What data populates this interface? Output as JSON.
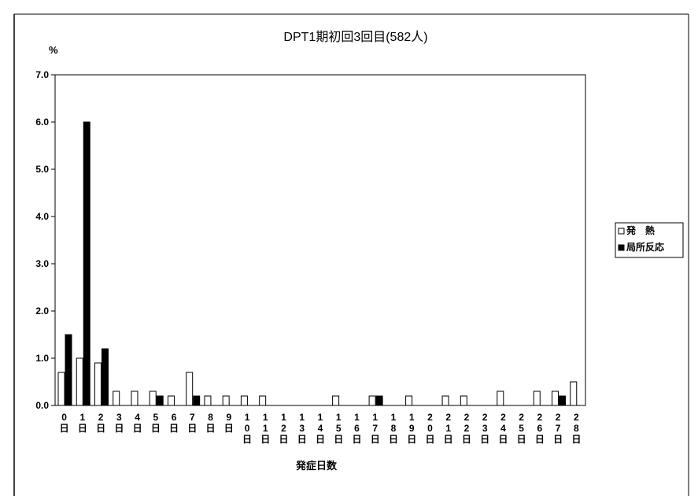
{
  "chart_data": {
    "type": "bar",
    "title": "DPT1期初回3回目(582人)",
    "ylabel": "%",
    "xlabel": "発症日数",
    "ylim": [
      0,
      7.0
    ],
    "yticks": [
      "0.0",
      "1.0",
      "2.0",
      "3.0",
      "4.0",
      "5.0",
      "6.0",
      "7.0"
    ],
    "categories": [
      [
        "0",
        "日"
      ],
      [
        "1",
        "日"
      ],
      [
        "2",
        "日"
      ],
      [
        "3",
        "日"
      ],
      [
        "4",
        "日"
      ],
      [
        "5",
        "日"
      ],
      [
        "6",
        "日"
      ],
      [
        "7",
        "日"
      ],
      [
        "8",
        "日"
      ],
      [
        "9",
        "日"
      ],
      [
        "1",
        "0",
        "日"
      ],
      [
        "1",
        "1",
        "日"
      ],
      [
        "1",
        "2",
        "日"
      ],
      [
        "1",
        "3",
        "日"
      ],
      [
        "1",
        "4",
        "日"
      ],
      [
        "1",
        "5",
        "日"
      ],
      [
        "1",
        "6",
        "日"
      ],
      [
        "1",
        "7",
        "日"
      ],
      [
        "1",
        "8",
        "日"
      ],
      [
        "1",
        "9",
        "日"
      ],
      [
        "2",
        "0",
        "日"
      ],
      [
        "2",
        "1",
        "日"
      ],
      [
        "2",
        "2",
        "日"
      ],
      [
        "2",
        "3",
        "日"
      ],
      [
        "2",
        "4",
        "日"
      ],
      [
        "2",
        "5",
        "日"
      ],
      [
        "2",
        "6",
        "日"
      ],
      [
        "2",
        "7",
        "日"
      ],
      [
        "2",
        "8",
        "日"
      ]
    ],
    "series": [
      {
        "name": "発　熱",
        "fill": "#ffffff",
        "values": [
          0.7,
          1.0,
          0.9,
          0.3,
          0.3,
          0.3,
          0.2,
          0.7,
          0.2,
          0.2,
          0.2,
          0.2,
          0,
          0,
          0,
          0.2,
          0,
          0.2,
          0,
          0.2,
          0,
          0.2,
          0.2,
          0,
          0.3,
          0,
          0.3,
          0.3,
          0.5
        ]
      },
      {
        "name": "局所反応",
        "fill": "#000000",
        "values": [
          1.5,
          6.0,
          1.2,
          0,
          0,
          0.2,
          0,
          0.2,
          0,
          0,
          0,
          0,
          0,
          0,
          0,
          0,
          0,
          0.2,
          0,
          0,
          0,
          0,
          0,
          0,
          0,
          0,
          0,
          0.2,
          0
        ]
      }
    ],
    "grid": false,
    "legend_position": "right"
  }
}
